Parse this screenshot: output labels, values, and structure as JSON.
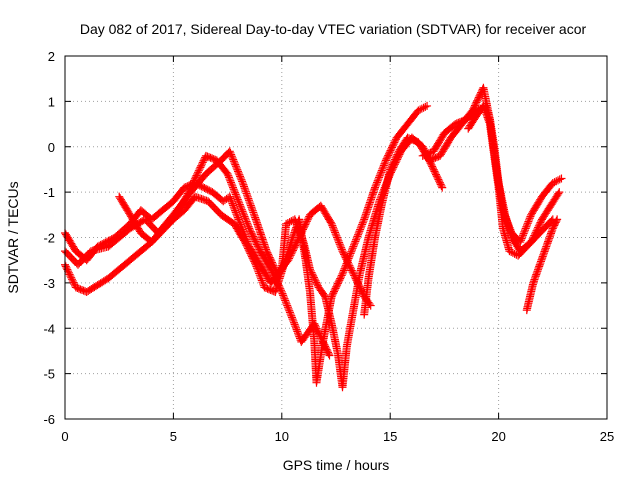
{
  "chart_data": {
    "type": "scatter",
    "title": "Day 082 of 2017, Sidereal Day-to-day VTEC variation (SDTVAR) for receiver acor",
    "xlabel": "GPS time / hours",
    "ylabel": "SDTVAR / TECUs",
    "xlim": [
      0,
      25
    ],
    "ylim": [
      -6,
      2
    ],
    "xticks": [
      "0",
      "5",
      "10",
      "15",
      "20",
      "25"
    ],
    "yticks": [
      "-6",
      "-5",
      "-4",
      "-3",
      "-2",
      "-1",
      "0",
      "1",
      "2"
    ],
    "grid": true,
    "marker": "plus",
    "color": "#ff0000",
    "series": [
      {
        "points": [
          [
            0,
            -2.6
          ],
          [
            0.5,
            -3.1
          ],
          [
            1,
            -3.2
          ],
          [
            2,
            -2.9
          ],
          [
            3,
            -2.5
          ],
          [
            4,
            -2.1
          ],
          [
            5,
            -1.6
          ],
          [
            5.6,
            -1.1
          ],
          [
            6.1,
            -0.6
          ],
          [
            6.5,
            -0.2
          ],
          [
            7,
            -0.3
          ],
          [
            7.5,
            -0.6
          ],
          [
            8,
            -1.2
          ],
          [
            8.5,
            -1.8
          ],
          [
            9,
            -2.3
          ],
          [
            9.5,
            -2.7
          ],
          [
            10,
            -3.2
          ],
          [
            10.5,
            -3.8
          ],
          [
            10.9,
            -4.3
          ],
          [
            11.5,
            -3.9
          ],
          [
            12,
            -4.4
          ],
          [
            12.2,
            -4.6
          ]
        ]
      },
      {
        "points": [
          [
            0,
            -2.3
          ],
          [
            0.6,
            -2.6
          ],
          [
            1.2,
            -2.3
          ],
          [
            2,
            -2.2
          ],
          [
            2.5,
            -2.0
          ],
          [
            3,
            -1.8
          ],
          [
            3.7,
            -1.6
          ],
          [
            4.3,
            -1.9
          ],
          [
            5,
            -1.5
          ],
          [
            5.8,
            -1.0
          ],
          [
            6.5,
            -0.6
          ],
          [
            7.2,
            -0.3
          ],
          [
            7.6,
            -0.1
          ],
          [
            8.2,
            -0.8
          ],
          [
            8.8,
            -1.6
          ],
          [
            9.3,
            -2.3
          ],
          [
            9.8,
            -2.8
          ],
          [
            10.3,
            -2.5
          ],
          [
            10.8,
            -2.0
          ],
          [
            11.3,
            -1.5
          ],
          [
            11.8,
            -1.3
          ],
          [
            12.3,
            -1.7
          ],
          [
            12.8,
            -2.3
          ],
          [
            13.3,
            -2.8
          ],
          [
            13.8,
            -3.3
          ],
          [
            14.1,
            -3.5
          ]
        ]
      },
      {
        "points": [
          [
            0,
            -1.9
          ],
          [
            0.5,
            -2.3
          ],
          [
            1,
            -2.5
          ],
          [
            1.5,
            -2.2
          ],
          [
            2.3,
            -2.0
          ],
          [
            3,
            -1.7
          ],
          [
            3.5,
            -1.4
          ],
          [
            4,
            -1.6
          ],
          [
            4.5,
            -1.4
          ],
          [
            5,
            -1.2
          ],
          [
            5.5,
            -0.9
          ],
          [
            6,
            -0.8
          ],
          [
            6.8,
            -1.0
          ],
          [
            7.3,
            -1.2
          ],
          [
            7.6,
            -1.1
          ],
          [
            8,
            -1.6
          ],
          [
            8.5,
            -2.2
          ],
          [
            9,
            -2.6
          ],
          [
            9.5,
            -3.0
          ],
          [
            10,
            -2.7
          ],
          [
            10.2,
            -1.7
          ],
          [
            10.6,
            -1.6
          ],
          [
            11,
            -2.1
          ],
          [
            11.3,
            -2.7
          ],
          [
            11.7,
            -3.1
          ],
          [
            12,
            -3.3
          ],
          [
            12.3,
            -3.9
          ],
          [
            12.6,
            -4.6
          ],
          [
            12.8,
            -5.3
          ],
          [
            13,
            -4.4
          ],
          [
            13.3,
            -3.6
          ],
          [
            13.6,
            -2.8
          ],
          [
            14,
            -2.0
          ],
          [
            14.5,
            -1.2
          ],
          [
            15,
            -0.6
          ],
          [
            15.5,
            -0.1
          ],
          [
            16,
            0.2
          ],
          [
            16.5,
            0.0
          ],
          [
            16.9,
            -0.4
          ],
          [
            17.4,
            -0.9
          ]
        ]
      },
      {
        "points": [
          [
            2.5,
            -1.1
          ],
          [
            3,
            -1.5
          ],
          [
            3.5,
            -1.9
          ],
          [
            4,
            -2.1
          ],
          [
            4.5,
            -1.8
          ],
          [
            5,
            -1.6
          ],
          [
            5.5,
            -1.4
          ],
          [
            6,
            -1.1
          ],
          [
            6.6,
            -1.2
          ],
          [
            7.2,
            -1.5
          ],
          [
            7.8,
            -1.7
          ],
          [
            8.3,
            -2.1
          ],
          [
            8.8,
            -2.6
          ],
          [
            9.2,
            -3.1
          ],
          [
            9.7,
            -3.2
          ],
          [
            10.1,
            -2.6
          ],
          [
            10.5,
            -2.0
          ],
          [
            10.8,
            -1.6
          ],
          [
            11.1,
            -2.5
          ],
          [
            11.3,
            -3.2
          ],
          [
            11.5,
            -4.3
          ],
          [
            11.6,
            -5.2
          ],
          [
            11.9,
            -4.3
          ],
          [
            12.3,
            -3.3
          ],
          [
            12.8,
            -2.8
          ],
          [
            13.3,
            -2.2
          ],
          [
            13.8,
            -1.6
          ],
          [
            14.3,
            -0.9
          ],
          [
            14.8,
            -0.3
          ],
          [
            15.3,
            0.2
          ],
          [
            15.8,
            0.5
          ],
          [
            16.3,
            0.8
          ],
          [
            16.7,
            0.9
          ]
        ]
      },
      {
        "points": [
          [
            13.8,
            -3.7
          ],
          [
            14,
            -2.9
          ],
          [
            14.3,
            -2.0
          ],
          [
            14.6,
            -1.3
          ],
          [
            15,
            -0.5
          ],
          [
            15.4,
            -0.1
          ],
          [
            15.8,
            0.2
          ],
          [
            16.3,
            0.1
          ],
          [
            16.8,
            -0.3
          ],
          [
            17.3,
            -0.2
          ],
          [
            17.8,
            0.2
          ],
          [
            18.3,
            0.5
          ],
          [
            18.8,
            0.8
          ],
          [
            19.3,
            1.3
          ],
          [
            19.6,
            0.6
          ],
          [
            19.9,
            -0.5
          ],
          [
            20.2,
            -1.4
          ],
          [
            20.6,
            -1.9
          ],
          [
            21,
            -2.1
          ],
          [
            21.5,
            -1.5
          ],
          [
            22,
            -1.1
          ],
          [
            22.5,
            -0.8
          ],
          [
            22.9,
            -0.7
          ]
        ]
      },
      {
        "points": [
          [
            16.5,
            -0.2
          ],
          [
            17,
            -0.1
          ],
          [
            17.5,
            0.3
          ],
          [
            18,
            0.5
          ],
          [
            18.5,
            0.6
          ],
          [
            19,
            0.8
          ],
          [
            19.4,
            0.9
          ],
          [
            19.6,
            0.6
          ],
          [
            19.8,
            0.0
          ],
          [
            20,
            -0.8
          ],
          [
            20.3,
            -1.5
          ],
          [
            20.6,
            -2.0
          ],
          [
            21,
            -2.3
          ],
          [
            21.5,
            -2.1
          ],
          [
            22,
            -1.6
          ],
          [
            22.4,
            -1.3
          ],
          [
            22.8,
            -1.0
          ]
        ]
      },
      {
        "points": [
          [
            18.6,
            0.4
          ],
          [
            19,
            0.7
          ],
          [
            19.3,
            0.9
          ],
          [
            19.6,
            0.5
          ],
          [
            19.8,
            -0.2
          ],
          [
            20,
            -0.9
          ],
          [
            20.2,
            -1.8
          ],
          [
            20.5,
            -2.3
          ],
          [
            20.9,
            -2.4
          ],
          [
            21.3,
            -2.2
          ],
          [
            21.7,
            -2.0
          ],
          [
            22.1,
            -1.8
          ],
          [
            22.5,
            -1.6
          ]
        ]
      },
      {
        "points": [
          [
            21.3,
            -3.6
          ],
          [
            21.6,
            -3.0
          ],
          [
            21.9,
            -2.6
          ],
          [
            22.2,
            -2.2
          ],
          [
            22.5,
            -1.8
          ],
          [
            22.7,
            -1.6
          ]
        ]
      }
    ]
  }
}
